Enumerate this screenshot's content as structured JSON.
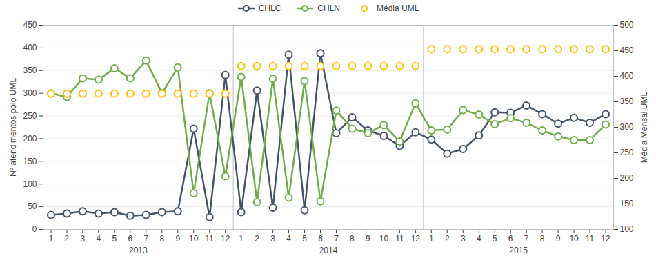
{
  "chart_data": {
    "type": "line",
    "categories": [
      "1",
      "2",
      "3",
      "4",
      "5",
      "6",
      "7",
      "8",
      "9",
      "10",
      "11",
      "12",
      "1",
      "2",
      "3",
      "4",
      "5",
      "6",
      "7",
      "8",
      "9",
      "10",
      "11",
      "12",
      "1",
      "2",
      "3",
      "4",
      "5",
      "6",
      "7",
      "8",
      "9",
      "10",
      "11",
      "12"
    ],
    "x_groups": [
      "2013",
      "2014",
      "2015"
    ],
    "ylabel": "Nº atendimentos polo UML",
    "y2label": "Média Mensal UML",
    "ylim": [
      0,
      450
    ],
    "yticks": [
      0,
      50,
      100,
      150,
      200,
      250,
      300,
      350,
      400,
      450
    ],
    "y2lim": [
      100,
      500
    ],
    "y2ticks": [
      100,
      150,
      200,
      250,
      300,
      350,
      400,
      450,
      500
    ],
    "grid": true,
    "legend": "top",
    "series": [
      {
        "name": "CHLC",
        "color": "#44546a",
        "marker": "circle",
        "values": [
          32,
          35,
          40,
          35,
          38,
          30,
          32,
          38,
          40,
          222,
          27,
          340,
          38,
          306,
          48,
          385,
          42,
          388,
          212,
          247,
          218,
          206,
          184,
          214,
          198,
          167,
          177,
          207,
          258,
          257,
          273,
          254,
          233,
          246,
          235,
          254
        ]
      },
      {
        "name": "CHLN",
        "color": "#70ad47",
        "marker": "circle",
        "values": [
          300,
          292,
          333,
          330,
          355,
          333,
          372,
          300,
          357,
          80,
          300,
          117,
          336,
          60,
          332,
          70,
          327,
          62,
          262,
          222,
          212,
          230,
          194,
          278,
          218,
          220,
          263,
          253,
          232,
          245,
          235,
          218,
          205,
          197,
          197,
          231
        ]
      },
      {
        "name": "Média UML",
        "color": "#ffc000",
        "type": "scatter",
        "marker": "circle",
        "axis": "y2",
        "values": [
          366,
          366,
          366,
          366,
          366,
          366,
          366,
          366,
          366,
          366,
          366,
          366,
          420,
          420,
          420,
          420,
          420,
          420,
          420,
          420,
          420,
          420,
          420,
          420,
          453,
          453,
          453,
          453,
          453,
          453,
          453,
          453,
          453,
          453,
          453,
          453
        ]
      }
    ]
  }
}
